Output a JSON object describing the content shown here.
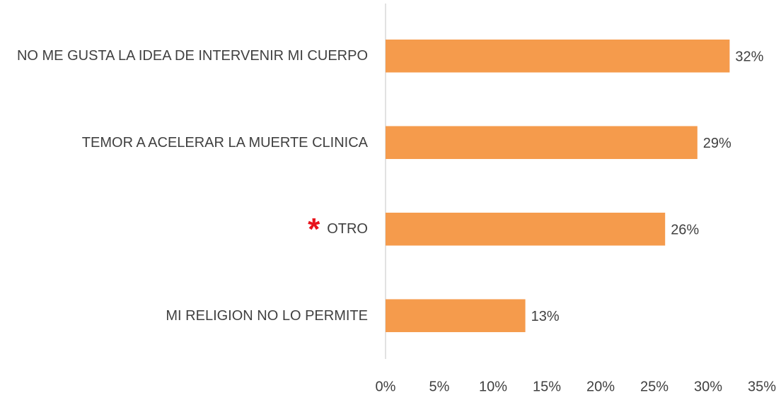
{
  "chart_data": {
    "type": "bar",
    "orientation": "horizontal",
    "categories": [
      "NO ME GUSTA LA IDEA DE INTERVENIR MI CUERPO",
      "TEMOR A ACELERAR LA MUERTE CLINICA",
      "OTRO",
      "MI RELIGION NO LO PERMITE"
    ],
    "values": [
      32,
      29,
      26,
      13
    ],
    "value_labels": [
      "32%",
      "29%",
      "26%",
      "13%"
    ],
    "color": "#f59b4c",
    "annotation": "*",
    "annotation_color": "#e8141c",
    "xlim": [
      0,
      35
    ],
    "xticks": [
      {
        "value": 0,
        "label": "0%"
      },
      {
        "value": 5,
        "label": "5%"
      },
      {
        "value": 10,
        "label": "10%"
      },
      {
        "value": 15,
        "label": "15%"
      },
      {
        "value": 20,
        "label": "20%"
      },
      {
        "value": 25,
        "label": "25%"
      },
      {
        "value": 30,
        "label": "30%"
      },
      {
        "value": 35,
        "label": "35%"
      }
    ],
    "grid": false
  }
}
